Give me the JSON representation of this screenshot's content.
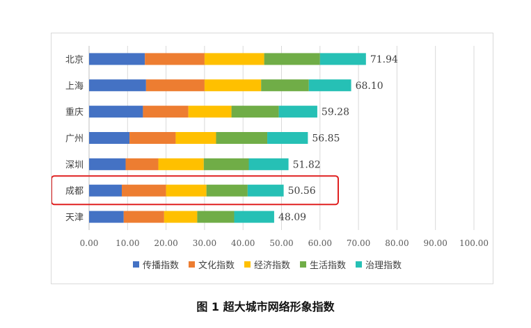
{
  "caption": "图 1 超大城市网络形象指数",
  "chart_data": {
    "type": "bar",
    "orientation": "horizontal",
    "stacked": true,
    "categories": [
      "北京",
      "上海",
      "重庆",
      "广州",
      "深圳",
      "成都",
      "天津"
    ],
    "series": [
      {
        "name": "传播指数",
        "color": "#4472C4",
        "values": [
          14.5,
          14.8,
          14.0,
          10.5,
          9.5,
          8.5,
          9.0
        ]
      },
      {
        "name": "文化指数",
        "color": "#ED7D31",
        "values": [
          15.5,
          15.2,
          11.8,
          12.0,
          8.5,
          11.5,
          10.5
        ]
      },
      {
        "name": "经济指数",
        "color": "#FFC000",
        "values": [
          15.5,
          14.7,
          11.2,
          10.5,
          11.8,
          10.5,
          8.6
        ]
      },
      {
        "name": "生活指数",
        "color": "#70AD47",
        "values": [
          14.5,
          12.4,
          12.3,
          13.3,
          11.7,
          10.7,
          9.6
        ]
      },
      {
        "name": "治理指数",
        "color": "#26C0B5",
        "values": [
          11.94,
          11.0,
          10.0,
          10.55,
          10.32,
          9.36,
          10.39
        ]
      }
    ],
    "totals": [
      "71.94",
      "68.10",
      "59.28",
      "56.85",
      "51.82",
      "50.56",
      "48.09"
    ],
    "x_ticks": [
      "0.00",
      "10.00",
      "20.00",
      "30.00",
      "40.00",
      "50.00",
      "60.00",
      "70.00",
      "80.00",
      "90.00",
      "100.00"
    ],
    "xlim": [
      0,
      100
    ],
    "grid": "vertical",
    "legend_position": "bottom",
    "highlight": {
      "category": "成都",
      "color": "#E02020"
    }
  }
}
